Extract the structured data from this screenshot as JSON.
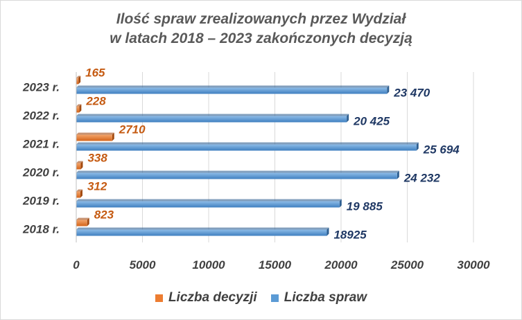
{
  "chart_data": {
    "type": "bar",
    "orientation": "horizontal",
    "title": [
      "Ilość spraw zrealizowanych przez Wydział",
      "w latach 2018 – 2023 zakończonych decyzją"
    ],
    "categories": [
      "2023 r.",
      "2022 r.",
      "2021 r.",
      "2020 r.",
      "2019 r.",
      "2018 r."
    ],
    "series": [
      {
        "name": "Liczba decyzji",
        "color": "#ED7D31",
        "label_color": "#C55A11",
        "values": [
          165,
          228,
          2710,
          338,
          312,
          823
        ],
        "labels": [
          "165",
          "228",
          "2710",
          "338",
          "312",
          "823"
        ]
      },
      {
        "name": "Liczba spraw",
        "color": "#5B9BD5",
        "label_color": "#1F3864",
        "values": [
          23470,
          20425,
          25694,
          24232,
          19885,
          18925
        ],
        "labels": [
          "23 470",
          "20 425",
          "25 694",
          "24 232",
          "19 885",
          "18925"
        ]
      }
    ],
    "xlim": [
      0,
      30000
    ],
    "x_ticks": [
      "0",
      "5000",
      "10000",
      "15000",
      "20000",
      "25000",
      "30000"
    ],
    "x_tick_values": [
      0,
      5000,
      10000,
      15000,
      20000,
      25000,
      30000
    ],
    "grid": true,
    "legend": "bottom"
  }
}
